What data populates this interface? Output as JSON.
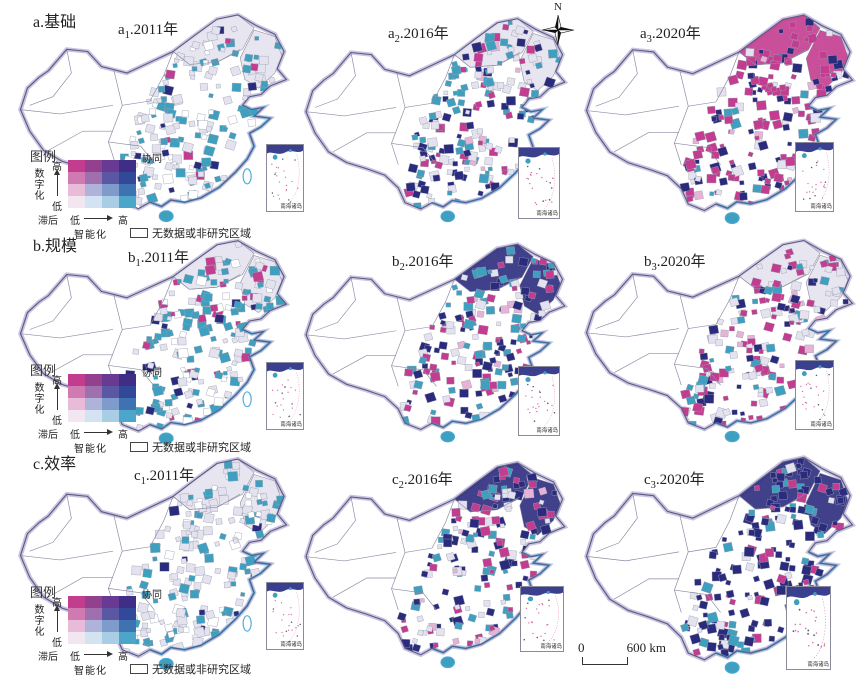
{
  "figure": {
    "row_labels": [
      "a.基础",
      "b.规模",
      "c.效率"
    ]
  },
  "north_arrow": {
    "label": "N"
  },
  "scale_bar": {
    "zero": "0",
    "distance": "600 km"
  },
  "inset": {
    "label": "南海诸岛"
  },
  "legend": {
    "title": "图例",
    "corner_high": "协同",
    "corner_low": "滞后",
    "y_axis": "数字化",
    "x_axis": "智能化",
    "y_high": "高",
    "y_low": "低",
    "x_low": "低",
    "x_high": "高",
    "no_data": "无数据或非研究区域",
    "matrix": [
      [
        "#c33d8e",
        "#93408f",
        "#693a94",
        "#3f2e85"
      ],
      [
        "#d07ab2",
        "#a06fae",
        "#5b57a2",
        "#32499a"
      ],
      [
        "#e8bcd9",
        "#b0b3d9",
        "#7e9bcb",
        "#3f72b0"
      ],
      [
        "#f2e6f0",
        "#d3e3f2",
        "#a9cde4",
        "#4ba6c9"
      ]
    ]
  },
  "chart_data": {
    "type": "bivariate-choropleth-map-grid",
    "region": "China (city level)",
    "grid": "3 rows (indicators) x 3 columns (years)",
    "bivariate_axes": {
      "y": "数字化 (低→高)",
      "x": "智能化 (低→高)",
      "high_high": "协同",
      "low_low": "滞后"
    },
    "colors": {
      "magenta": "#c33c8f",
      "navy": "#2b2b7e",
      "teal": "#3f9fbf",
      "lavender": "#e4e2ee",
      "light_pink": "#e6b3d6",
      "no_data": "#ffffff"
    },
    "panels": [
      {
        "id": "a1",
        "letter": "a",
        "sub": "1",
        "suffix": ".2011年",
        "indicator": "基础",
        "year": "2011",
        "distribution_note": "east mostly lavender+teal, sparse navy, west no data",
        "region_fill": "#e4e2ee",
        "palette": [
          [
            "#e4e2ee",
            0.42
          ],
          [
            "#3f9fbf",
            0.3
          ],
          [
            "#ffffff",
            0.18
          ],
          [
            "#2b2b7e",
            0.07
          ],
          [
            "#c33c8f",
            0.03
          ]
        ]
      },
      {
        "id": "a2",
        "letter": "a",
        "sub": "2",
        "suffix": ".2016年",
        "indicator": "基础",
        "year": "2016",
        "distribution_note": "lavender+teal with more navy and emerging magenta",
        "region_fill": "#e4e2ee",
        "palette": [
          [
            "#e4e2ee",
            0.3
          ],
          [
            "#3f9fbf",
            0.27
          ],
          [
            "#2b2b7e",
            0.22
          ],
          [
            "#c33c8f",
            0.16
          ],
          [
            "#e6b3d6",
            0.05
          ]
        ]
      },
      {
        "id": "a3",
        "letter": "a",
        "sub": "3",
        "suffix": ".2020年",
        "indicator": "基础",
        "year": "2020",
        "distribution_note": "east dominated by magenta with navy patches",
        "region_fill": "#c33c8f",
        "palette": [
          [
            "#c33c8f",
            0.56
          ],
          [
            "#2b2b7e",
            0.28
          ],
          [
            "#e4e2ee",
            0.07
          ],
          [
            "#e6b3d6",
            0.05
          ],
          [
            "#3f9fbf",
            0.04
          ]
        ]
      },
      {
        "id": "b1",
        "letter": "b",
        "sub": "1",
        "suffix": ".2011年",
        "indicator": "规模",
        "year": "2011",
        "distribution_note": "teal dominant with lavender, scattered magenta and navy",
        "region_fill": "#e4e2ee",
        "palette": [
          [
            "#3f9fbf",
            0.36
          ],
          [
            "#e4e2ee",
            0.28
          ],
          [
            "#c33c8f",
            0.13
          ],
          [
            "#ffffff",
            0.12
          ],
          [
            "#2b2b7e",
            0.11
          ]
        ]
      },
      {
        "id": "b2",
        "letter": "b",
        "sub": "2",
        "suffix": ".2016年",
        "indicator": "规模",
        "year": "2016",
        "distribution_note": "mixed navy, teal and magenta; navy in north",
        "region_fill": "#2b2b7e",
        "palette": [
          [
            "#2b2b7e",
            0.3
          ],
          [
            "#3f9fbf",
            0.24
          ],
          [
            "#c33c8f",
            0.24
          ],
          [
            "#e4e2ee",
            0.16
          ],
          [
            "#e6b3d6",
            0.06
          ]
        ]
      },
      {
        "id": "b3",
        "letter": "b",
        "sub": "3",
        "suffix": ".2020年",
        "indicator": "规模",
        "year": "2020",
        "distribution_note": "lavender base with scattered magenta, some navy and teal",
        "region_fill": "#e4e2ee",
        "palette": [
          [
            "#e4e2ee",
            0.38
          ],
          [
            "#c33c8f",
            0.3
          ],
          [
            "#2b2b7e",
            0.13
          ],
          [
            "#3f9fbf",
            0.12
          ],
          [
            "#e6b3d6",
            0.07
          ]
        ]
      },
      {
        "id": "c1",
        "letter": "c",
        "sub": "1",
        "suffix": ".2011年",
        "indicator": "效率",
        "year": "2011",
        "distribution_note": "mostly lavender with scattered teal",
        "region_fill": "#e4e2ee",
        "palette": [
          [
            "#e4e2ee",
            0.48
          ],
          [
            "#3f9fbf",
            0.32
          ],
          [
            "#ffffff",
            0.15
          ],
          [
            "#2b2b7e",
            0.05
          ]
        ]
      },
      {
        "id": "c2",
        "letter": "c",
        "sub": "2",
        "suffix": ".2016年",
        "indicator": "效率",
        "year": "2016",
        "distribution_note": "navy concentrated in east coast, magenta and teal inland",
        "region_fill": "#2b2b7e",
        "palette": [
          [
            "#2b2b7e",
            0.34
          ],
          [
            "#c33c8f",
            0.22
          ],
          [
            "#3f9fbf",
            0.2
          ],
          [
            "#e4e2ee",
            0.19
          ],
          [
            "#e6b3d6",
            0.05
          ]
        ]
      },
      {
        "id": "c3",
        "letter": "c",
        "sub": "3",
        "suffix": ".2020年",
        "indicator": "效率",
        "year": "2020",
        "distribution_note": "east dominated by navy with magenta patches",
        "region_fill": "#2b2b7e",
        "palette": [
          [
            "#2b2b7e",
            0.58
          ],
          [
            "#c33c8f",
            0.22
          ],
          [
            "#3f9fbf",
            0.11
          ],
          [
            "#e4e2ee",
            0.09
          ]
        ]
      }
    ]
  }
}
